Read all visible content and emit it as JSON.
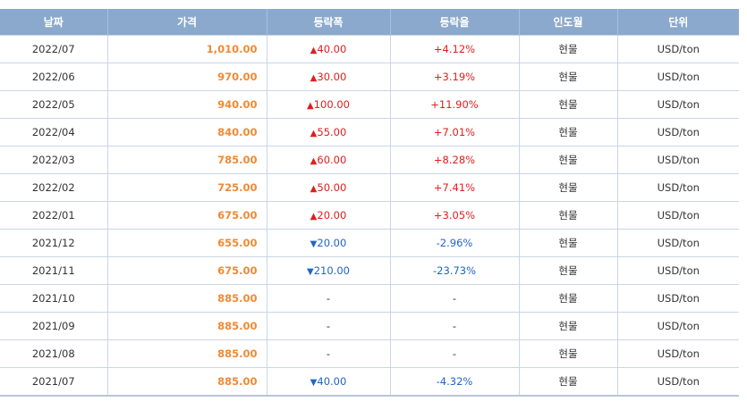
{
  "headers": [
    "날짜",
    "가격",
    "등락폭",
    "등락율",
    "인도월",
    "단위"
  ],
  "rows": [
    {
      "date": "2022/07",
      "price": "1,010.00",
      "dir": "up",
      "arrow": "▲",
      "change": "40.00",
      "rate": "+4.12%",
      "delivery": "현물",
      "unit": "USD/ton"
    },
    {
      "date": "2022/06",
      "price": "970.00",
      "dir": "up",
      "arrow": "▲",
      "change": "30.00",
      "rate": "+3.19%",
      "delivery": "현물",
      "unit": "USD/ton"
    },
    {
      "date": "2022/05",
      "price": "940.00",
      "dir": "up",
      "arrow": "▲",
      "change": "100.00",
      "rate": "+11.90%",
      "delivery": "현물",
      "unit": "USD/ton"
    },
    {
      "date": "2022/04",
      "price": "840.00",
      "dir": "up",
      "arrow": "▲",
      "change": "55.00",
      "rate": "+7.01%",
      "delivery": "현물",
      "unit": "USD/ton"
    },
    {
      "date": "2022/03",
      "price": "785.00",
      "dir": "up",
      "arrow": "▲",
      "change": "60.00",
      "rate": "+8.28%",
      "delivery": "현물",
      "unit": "USD/ton"
    },
    {
      "date": "2022/02",
      "price": "725.00",
      "dir": "up",
      "arrow": "▲",
      "change": "50.00",
      "rate": "+7.41%",
      "delivery": "현물",
      "unit": "USD/ton"
    },
    {
      "date": "2022/01",
      "price": "675.00",
      "dir": "up",
      "arrow": "▲",
      "change": "20.00",
      "rate": "+3.05%",
      "delivery": "현물",
      "unit": "USD/ton"
    },
    {
      "date": "2021/12",
      "price": "655.00",
      "dir": "down",
      "arrow": "▼",
      "change": "20.00",
      "rate": "-2.96%",
      "delivery": "현물",
      "unit": "USD/ton"
    },
    {
      "date": "2021/11",
      "price": "675.00",
      "dir": "down",
      "arrow": "▼",
      "change": "210.00",
      "rate": "-23.73%",
      "delivery": "현물",
      "unit": "USD/ton"
    },
    {
      "date": "2021/10",
      "price": "885.00",
      "dir": "flat",
      "arrow": "",
      "change": "-",
      "rate": "-",
      "delivery": "현물",
      "unit": "USD/ton"
    },
    {
      "date": "2021/09",
      "price": "885.00",
      "dir": "flat",
      "arrow": "",
      "change": "-",
      "rate": "-",
      "delivery": "현물",
      "unit": "USD/ton"
    },
    {
      "date": "2021/08",
      "price": "885.00",
      "dir": "flat",
      "arrow": "",
      "change": "-",
      "rate": "-",
      "delivery": "현물",
      "unit": "USD/ton"
    },
    {
      "date": "2021/07",
      "price": "885.00",
      "dir": "down",
      "arrow": "▼",
      "change": "40.00",
      "rate": "-4.32%",
      "delivery": "현물",
      "unit": "USD/ton"
    }
  ],
  "colors": {
    "header_bg": "#8ba9cc",
    "price": "#f08a34",
    "up": "#e01e1e",
    "down": "#1f64c8",
    "border": "#c9d6e6"
  }
}
